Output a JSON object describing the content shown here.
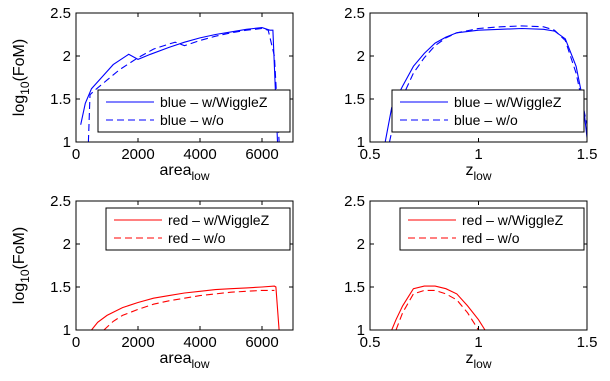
{
  "chart_data": [
    {
      "type": "line",
      "panel": "top-left",
      "xlabel": "area",
      "xlabel_sub": "low",
      "ylabel": "log",
      "ylabel_sub": "10",
      "ylabel_tail": "(FoM)",
      "xlim": [
        0,
        7000
      ],
      "ylim": [
        1,
        2.5
      ],
      "xticks": [
        0,
        2000,
        4000,
        6000
      ],
      "xtick_labels": [
        "0",
        "2000",
        "4000",
        "6000"
      ],
      "yticks": [
        1,
        1.5,
        2,
        2.5
      ],
      "ytick_labels": [
        "1",
        "1.5",
        "2",
        "2.5"
      ],
      "legend_placement": "lower-right",
      "color": "#0000ff",
      "series": [
        {
          "name": "blue – w/WiggleZ",
          "style": "solid",
          "x": [
            150,
            300,
            500,
            800,
            1200,
            1700,
            2000,
            2400,
            3000,
            3500,
            4000,
            4500,
            5000,
            5500,
            6000,
            6250,
            6350,
            6500
          ],
          "y": [
            1.2,
            1.45,
            1.62,
            1.74,
            1.9,
            2.02,
            1.96,
            2.02,
            2.1,
            2.16,
            2.21,
            2.25,
            2.28,
            2.31,
            2.33,
            2.3,
            2.3,
            1.0
          ]
        },
        {
          "name": "blue – w/o",
          "style": "dashed",
          "x": [
            400,
            450,
            600,
            1000,
            1400,
            2000,
            2500,
            3000,
            3200,
            3500,
            4000,
            4500,
            5000,
            5500,
            6000,
            6200,
            6400,
            6550
          ],
          "y": [
            1.0,
            1.55,
            1.6,
            1.72,
            1.84,
            1.98,
            2.08,
            2.14,
            2.16,
            2.12,
            2.18,
            2.23,
            2.27,
            2.3,
            2.32,
            2.3,
            2.0,
            1.0
          ]
        }
      ]
    },
    {
      "type": "line",
      "panel": "top-right",
      "xlabel": "z",
      "xlabel_sub": "low",
      "xlim": [
        0.5,
        1.5
      ],
      "ylim": [
        1,
        2.5
      ],
      "xticks": [
        0.5,
        1,
        1.5
      ],
      "xtick_labels": [
        "0.5",
        "1",
        "1.5"
      ],
      "yticks": [
        1,
        1.5,
        2,
        2.5
      ],
      "ytick_labels": [
        "1",
        "1.5",
        "2",
        "2.5"
      ],
      "legend_placement": "lower-right",
      "color": "#0000ff",
      "series": [
        {
          "name": "blue – w/WiggleZ",
          "style": "solid",
          "x": [
            0.57,
            0.6,
            0.65,
            0.7,
            0.75,
            0.8,
            0.85,
            0.9,
            1.0,
            1.1,
            1.2,
            1.3,
            1.35,
            1.4,
            1.45,
            1.48,
            1.5
          ],
          "y": [
            1.0,
            1.4,
            1.65,
            1.88,
            2.03,
            2.15,
            2.22,
            2.27,
            2.3,
            2.31,
            2.32,
            2.31,
            2.29,
            2.2,
            1.88,
            1.5,
            1.05
          ]
        },
        {
          "name": "blue – w/o",
          "style": "dashed",
          "x": [
            0.59,
            0.62,
            0.66,
            0.7,
            0.75,
            0.8,
            0.85,
            0.9,
            1.0,
            1.1,
            1.2,
            1.3,
            1.35,
            1.4,
            1.45,
            1.5
          ],
          "y": [
            1.0,
            1.35,
            1.58,
            1.8,
            1.98,
            2.12,
            2.21,
            2.27,
            2.32,
            2.34,
            2.35,
            2.34,
            2.3,
            2.18,
            1.8,
            1.2
          ]
        }
      ]
    },
    {
      "type": "line",
      "panel": "bottom-left",
      "xlabel": "area",
      "xlabel_sub": "low",
      "ylabel": "log",
      "ylabel_sub": "10",
      "ylabel_tail": "(FoM)",
      "xlim": [
        0,
        7000
      ],
      "ylim": [
        1,
        2.5
      ],
      "xticks": [
        0,
        2000,
        4000,
        6000
      ],
      "xtick_labels": [
        "0",
        "2000",
        "4000",
        "6000"
      ],
      "yticks": [
        1,
        1.5,
        2,
        2.5
      ],
      "ytick_labels": [
        "1",
        "1.5",
        "2",
        "2.5"
      ],
      "legend_placement": "top-right",
      "color": "#ff0000",
      "series": [
        {
          "name": "red – w/WiggleZ",
          "style": "solid",
          "x": [
            500,
            700,
            1000,
            1500,
            2000,
            2500,
            3000,
            3500,
            4000,
            4500,
            5000,
            5500,
            6000,
            6400,
            6450,
            6550
          ],
          "y": [
            1.0,
            1.09,
            1.17,
            1.26,
            1.32,
            1.37,
            1.4,
            1.43,
            1.45,
            1.47,
            1.48,
            1.49,
            1.5,
            1.51,
            1.5,
            1.0
          ]
        },
        {
          "name": "red – w/o",
          "style": "dashed",
          "x": [
            900,
            1200,
            1500,
            2000,
            2500,
            3000,
            3500,
            4000,
            4500,
            5000,
            5500,
            6000,
            6400
          ],
          "y": [
            1.0,
            1.1,
            1.17,
            1.24,
            1.3,
            1.34,
            1.37,
            1.4,
            1.42,
            1.44,
            1.45,
            1.46,
            1.46
          ]
        }
      ]
    },
    {
      "type": "line",
      "panel": "bottom-right",
      "xlabel": "z",
      "xlabel_sub": "low",
      "xlim": [
        0.5,
        1.5
      ],
      "ylim": [
        1,
        2.5
      ],
      "xticks": [
        0.5,
        1,
        1.5
      ],
      "xtick_labels": [
        "0.5",
        "1",
        "1.5"
      ],
      "yticks": [
        1,
        1.5,
        2,
        2.5
      ],
      "ytick_labels": [
        "1",
        "1.5",
        "2",
        "2.5"
      ],
      "legend_placement": "top-right",
      "color": "#ff0000",
      "series": [
        {
          "name": "red – w/WiggleZ",
          "style": "solid",
          "x": [
            0.6,
            0.62,
            0.65,
            0.7,
            0.75,
            0.8,
            0.85,
            0.9,
            0.95,
            1.0,
            1.03
          ],
          "y": [
            1.0,
            1.12,
            1.28,
            1.48,
            1.51,
            1.51,
            1.48,
            1.42,
            1.28,
            1.12,
            1.0
          ]
        },
        {
          "name": "red – w/o",
          "style": "dashed",
          "x": [
            0.62,
            0.65,
            0.7,
            0.75,
            0.8,
            0.85,
            0.9,
            0.95,
            1.0
          ],
          "y": [
            1.0,
            1.2,
            1.42,
            1.46,
            1.46,
            1.42,
            1.35,
            1.2,
            1.0
          ]
        }
      ]
    }
  ]
}
